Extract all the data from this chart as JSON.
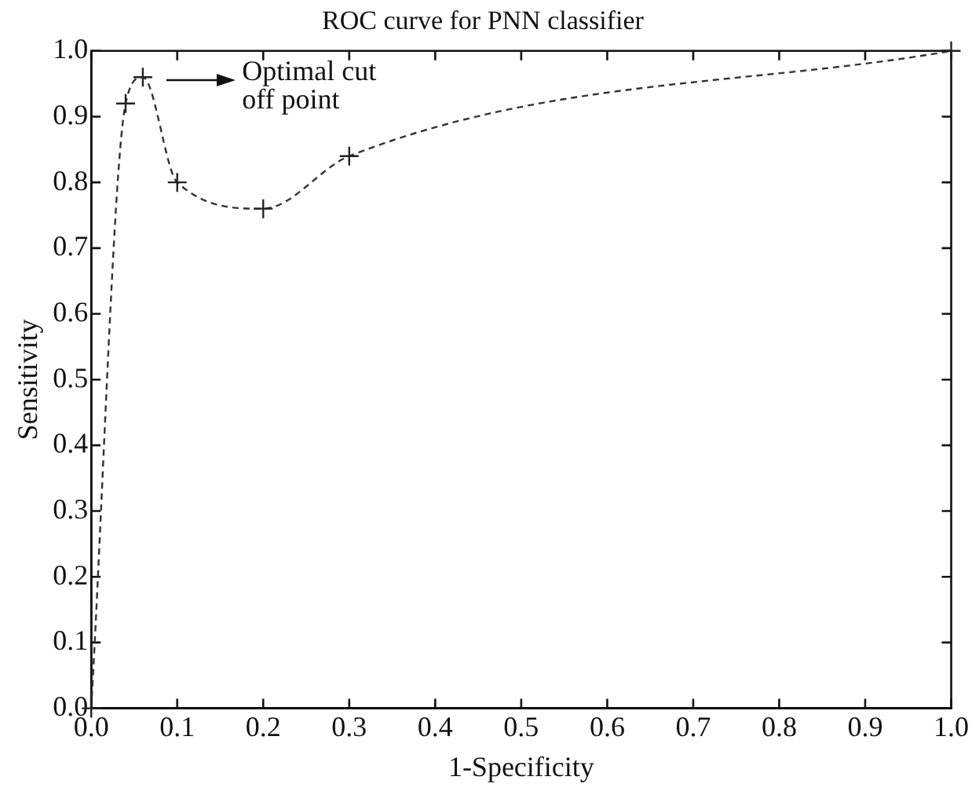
{
  "chart_data": {
    "type": "line",
    "title": "ROC curve for PNN classifier",
    "xlabel": "1-Specificity",
    "ylabel": "Sensitivity",
    "x": [
      0,
      0.04,
      0.06,
      0.1,
      0.2,
      0.3,
      1
    ],
    "series": [
      {
        "color": "#333333",
        "values": [
          0,
          0.92,
          0.96,
          0.8,
          0.76,
          0.84,
          1
        ]
      }
    ],
    "marker": "cross",
    "line_style": "dashed",
    "grid": false,
    "legend": false,
    "xlim": [
      0,
      1
    ],
    "ylim": [
      0,
      1
    ],
    "xticks": [
      {
        "value": 0,
        "label": "0.0"
      },
      0.1,
      0.2,
      0.3,
      0.4,
      0.5,
      0.6,
      0.7,
      0.8,
      0.9,
      {
        "value": 1,
        "label": "1.0"
      }
    ],
    "yticks": [
      {
        "value": 0,
        "label": "0.0"
      },
      0.1,
      0.2,
      0.3,
      0.4,
      0.5,
      0.6,
      0.7,
      0.8,
      0.9,
      {
        "value": 1,
        "label": "1.0"
      }
    ],
    "annotations": [
      "Optimal cut off point"
    ]
  }
}
